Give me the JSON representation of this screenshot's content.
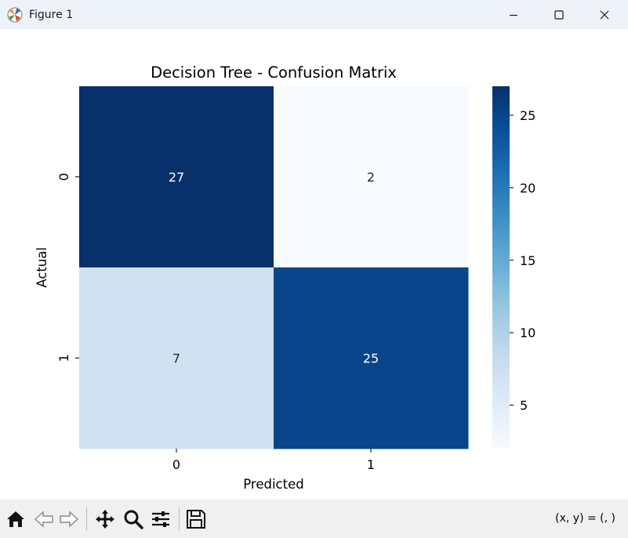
{
  "window": {
    "title": "Figure 1",
    "icons": {
      "app": "matplotlib-icon",
      "minimize": "minimize-icon",
      "maximize": "maximize-icon",
      "close": "close-icon"
    }
  },
  "chart_data": {
    "type": "heatmap",
    "title": "Decision Tree - Confusion Matrix",
    "xlabel": "Predicted",
    "ylabel": "Actual",
    "x_categories": [
      "0",
      "1"
    ],
    "y_categories": [
      "0",
      "1"
    ],
    "values": [
      [
        27,
        2
      ],
      [
        7,
        25
      ]
    ],
    "colormap": "Blues",
    "color_range": [
      2,
      27
    ],
    "colorbar_ticks": [
      5,
      10,
      15,
      20,
      25
    ],
    "colorbar_tick_labels": [
      "5",
      "10",
      "15",
      "20",
      "25"
    ],
    "annotations": true
  },
  "toolbar": {
    "icons": [
      "home-icon",
      "back-icon",
      "forward-icon",
      "pan-icon",
      "zoom-icon",
      "configure-icon",
      "save-icon"
    ],
    "coords_text": "(x, y) = (, )"
  }
}
